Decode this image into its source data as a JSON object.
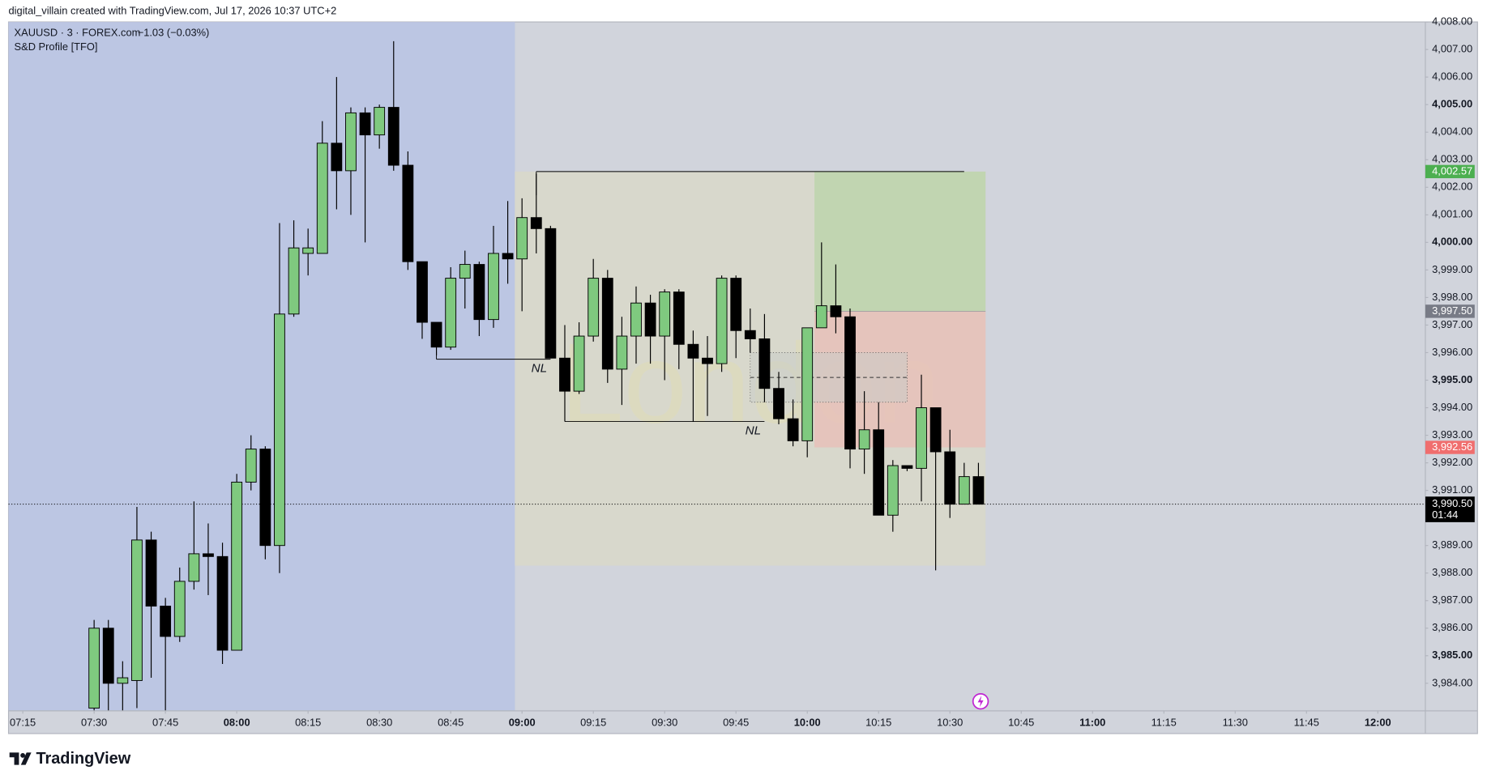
{
  "header": "digital_villain created with TradingView.com, Jul 17, 2026 10:37 UTC+2",
  "brand": "TradingView",
  "chart_data": {
    "type": "candlestick",
    "symbol": "XAUUSD · 3 · FOREX.com",
    "change": "−1.03 (−0.03%)",
    "indicator": "S&D Profile [TFO]",
    "up_color": "#7fc97f",
    "down_color": "#000000",
    "x": [
      "07:30",
      "07:33",
      "07:36",
      "07:39",
      "07:42",
      "07:45",
      "07:48",
      "07:51",
      "07:54",
      "07:57",
      "08:00",
      "08:03",
      "08:06",
      "08:09",
      "08:12",
      "08:15",
      "08:18",
      "08:21",
      "08:24",
      "08:27",
      "08:30",
      "08:33",
      "08:36",
      "08:39",
      "08:42",
      "08:45",
      "08:48",
      "08:51",
      "08:54",
      "08:57",
      "09:00",
      "09:03",
      "09:06",
      "09:09",
      "09:12",
      "09:15",
      "09:18",
      "09:21",
      "09:24",
      "09:27",
      "09:30",
      "09:33",
      "09:36",
      "09:39",
      "09:42",
      "09:45",
      "09:48",
      "09:51",
      "09:54",
      "09:57",
      "10:00",
      "10:03",
      "10:06",
      "10:09",
      "10:12",
      "10:15",
      "10:18",
      "10:21",
      "10:24",
      "10:27",
      "10:30",
      "10:33",
      "10:36"
    ],
    "open": [
      3983.1,
      3986.0,
      3984.0,
      3984.1,
      3989.2,
      3986.8,
      3985.7,
      3987.7,
      3988.7,
      3988.6,
      3985.2,
      3991.3,
      3992.5,
      3989.0,
      3997.4,
      3999.6,
      3999.6,
      4003.6,
      4002.6,
      4004.7,
      4003.9,
      4004.9,
      4002.8,
      3999.3,
      3997.1,
      3996.2,
      3998.7,
      3999.2,
      3997.2,
      3999.6,
      3999.4,
      4000.9,
      4000.5,
      3995.8,
      3994.6,
      3996.6,
      3998.7,
      3995.4,
      3996.6,
      3997.8,
      3996.6,
      3998.2,
      3996.3,
      3995.8,
      3995.6,
      3998.7,
      3996.8,
      3996.5,
      3994.7,
      3993.6,
      3992.8,
      3996.9,
      3997.7,
      3997.3,
      3992.5,
      3993.2,
      3990.1,
      3991.9,
      3991.8,
      3994.0,
      3992.4,
      3990.5,
      3991.5
    ],
    "high": [
      3986.3,
      3986.3,
      3984.8,
      3990.4,
      3989.5,
      3987.1,
      3988.2,
      3990.6,
      3989.8,
      3989.1,
      3991.6,
      3993.0,
      3992.6,
      4000.7,
      4000.8,
      4000.5,
      4004.4,
      4006.0,
      4004.9,
      4004.9,
      4005.0,
      4007.3,
      4003.3,
      3999.3,
      3997.1,
      3999.1,
      3999.7,
      3999.3,
      4000.6,
      4001.5,
      4001.6,
      4002.5,
      4000.6,
      3997.0,
      3997.1,
      3999.4,
      3999.0,
      3997.3,
      3998.4,
      3998.1,
      3998.3,
      3998.3,
      3996.8,
      3996.6,
      3998.8,
      3998.8,
      3997.6,
      3997.4,
      3995.3,
      3994.3,
      3996.9,
      4000.0,
      3999.2,
      3997.6,
      3994.6,
      3994.2,
      3992.1,
      3991.9,
      3995.2,
      3994.0,
      3993.2,
      3992.0,
      3992.0
    ],
    "low": [
      3983.0,
      3983.0,
      3983.0,
      3983.1,
      3984.2,
      3983.0,
      3985.5,
      3987.4,
      3987.2,
      3984.7,
      3985.2,
      3991.0,
      3988.5,
      3988.0,
      3997.3,
      3998.8,
      3999.6,
      4001.2,
      4001.0,
      4000.0,
      4003.4,
      4002.6,
      3999.0,
      3996.5,
      3995.9,
      3996.1,
      3997.6,
      3996.6,
      3996.9,
      3998.5,
      3997.5,
      3999.6,
      3995.8,
      3993.5,
      3994.5,
      3996.4,
      3994.9,
      3994.1,
      3995.6,
      3995.6,
      3995.0,
      3995.4,
      3993.5,
      3993.7,
      3995.3,
      3995.8,
      3996.0,
      3994.2,
      3993.4,
      3992.6,
      3992.2,
      3996.9,
      3996.7,
      3991.8,
      3991.6,
      3990.1,
      3989.5,
      3991.7,
      3990.6,
      3988.1,
      3990.0,
      3990.5,
      3990.5
    ],
    "close": [
      3986.0,
      3984.0,
      3984.2,
      3989.2,
      3986.8,
      3985.7,
      3987.7,
      3988.7,
      3988.6,
      3985.2,
      3991.3,
      3992.5,
      3989.0,
      3997.4,
      3999.8,
      3999.8,
      4003.6,
      4002.6,
      4004.7,
      4003.9,
      4004.9,
      4002.8,
      3999.3,
      3997.1,
      3996.2,
      3998.7,
      3999.2,
      3997.2,
      3999.6,
      3999.4,
      4000.9,
      4000.5,
      3995.8,
      3994.6,
      3996.6,
      3998.7,
      3995.4,
      3996.6,
      3997.8,
      3996.6,
      3998.2,
      3996.3,
      3995.8,
      3995.6,
      3998.7,
      3996.8,
      3996.5,
      3994.7,
      3993.6,
      3992.8,
      3996.9,
      3997.7,
      3997.3,
      3992.5,
      3993.2,
      3990.1,
      3991.9,
      3991.8,
      3994.0,
      3992.4,
      3990.5,
      3991.5,
      3990.5
    ],
    "xlim": [
      "07:12",
      "12:10"
    ],
    "xticks": [
      "07:15",
      "07:30",
      "07:45",
      "08:00",
      "08:15",
      "08:30",
      "08:45",
      "09:00",
      "09:15",
      "09:30",
      "09:45",
      "10:00",
      "10:15",
      "10:30",
      "10:45",
      "11:00",
      "11:15",
      "11:30",
      "11:45",
      "12:00"
    ],
    "ylim": [
      3983,
      4008
    ],
    "yticks": [
      {
        "value": 3984,
        "label": "3,984.00"
      },
      {
        "value": 3985,
        "label": "3,985.00"
      },
      {
        "value": 3986,
        "label": "3,986.00"
      },
      {
        "value": 3987,
        "label": "3,987.00"
      },
      {
        "value": 3988,
        "label": "3,988.00"
      },
      {
        "value": 3989,
        "label": "3,989.00"
      },
      {
        "value": 3991,
        "label": "3,991.00"
      },
      {
        "value": 3992,
        "label": "3,992.00"
      },
      {
        "value": 3993,
        "label": "3,993.00"
      },
      {
        "value": 3994,
        "label": "3,994.00"
      },
      {
        "value": 3995,
        "label": "3,995.00"
      },
      {
        "value": 3996,
        "label": "3,996.00"
      },
      {
        "value": 3997,
        "label": "3,997.00"
      },
      {
        "value": 3998,
        "label": "3,998.00"
      },
      {
        "value": 3999,
        "label": "3,999.00"
      },
      {
        "value": 4000,
        "label": "4,000.00"
      },
      {
        "value": 4001,
        "label": "4,001.00"
      },
      {
        "value": 4002,
        "label": "4,002.00"
      },
      {
        "value": 4003,
        "label": "4,003.00"
      },
      {
        "value": 4004,
        "label": "4,004.00"
      },
      {
        "value": 4005,
        "label": "4,005.00"
      },
      {
        "value": 4006,
        "label": "4,006.00"
      },
      {
        "value": 4007,
        "label": "4,007.00"
      },
      {
        "value": 4008,
        "label": "4,008.00"
      }
    ],
    "last_price": {
      "value": 3990.5,
      "label": "3,990.50",
      "countdown": "01:44"
    },
    "session": {
      "label": "London",
      "start": "09:00",
      "end": "10:36",
      "high": 4002.57,
      "low": 3988.27,
      "color": "#d8d8cc"
    },
    "pre_session_color": "#bcc6e3",
    "session_high_line": {
      "price": 4002.57,
      "start": "09:03",
      "end": "10:33"
    },
    "levels": [
      {
        "label": "NL",
        "price": 3995.76,
        "start": "08:42",
        "end": "09:06"
      },
      {
        "label": "NL",
        "price": 3993.5,
        "start": "09:09",
        "end": "09:51"
      }
    ],
    "zone": {
      "top": 3996.0,
      "bottom": 3994.2,
      "start": "09:48",
      "end": "10:21"
    },
    "position": {
      "start": "10:03",
      "end": "10:36",
      "target": {
        "value": 4002.57,
        "label": "4,002.57",
        "color": "#4caf50"
      },
      "entry": {
        "value": 3997.5,
        "label": "3,997.50",
        "color": "#787b86"
      },
      "stop": {
        "value": 3992.56,
        "label": "3,992.56",
        "color": "#f06e6e"
      }
    }
  }
}
